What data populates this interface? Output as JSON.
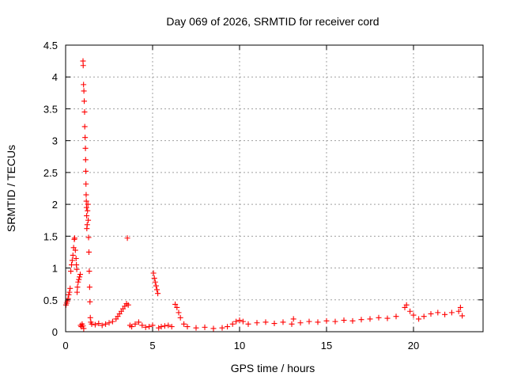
{
  "chart_data": {
    "type": "scatter",
    "title": "Day 069 of 2026, SRMTID for receiver cord",
    "xlabel": "GPS time / hours",
    "ylabel": "SRMTID / TECUs",
    "xlim": [
      0,
      24
    ],
    "ylim": [
      0,
      4.5
    ],
    "x_ticks": [
      0,
      5,
      10,
      15,
      20
    ],
    "x_tick_labels": [
      "0",
      "5",
      "10",
      "15",
      "20"
    ],
    "y_ticks": [
      0,
      0.5,
      1,
      1.5,
      2,
      2.5,
      3,
      3.5,
      4,
      4.5
    ],
    "y_tick_labels": [
      "0",
      "0.5",
      "1",
      "1.5",
      "2",
      "2.5",
      "3",
      "3.5",
      "4",
      "4.5"
    ],
    "grid": true,
    "marker": "+",
    "color": "#ff0000",
    "series": [
      {
        "name": "SRMTID",
        "points": [
          [
            0.02,
            0.42
          ],
          [
            0.06,
            0.45
          ],
          [
            0.1,
            0.48
          ],
          [
            0.14,
            0.52
          ],
          [
            0.18,
            0.58
          ],
          [
            0.22,
            0.62
          ],
          [
            0.26,
            0.68
          ],
          [
            0.3,
            0.95
          ],
          [
            0.34,
            1.05
          ],
          [
            0.38,
            1.12
          ],
          [
            0.42,
            1.2
          ],
          [
            0.46,
            1.32
          ],
          [
            0.5,
            1.45
          ],
          [
            0.52,
            1.47
          ],
          [
            0.56,
            1.28
          ],
          [
            0.6,
            1.15
          ],
          [
            0.62,
            1.05
          ],
          [
            0.64,
            0.98
          ],
          [
            0.66,
            0.62
          ],
          [
            0.68,
            0.7
          ],
          [
            0.72,
            0.78
          ],
          [
            0.76,
            0.82
          ],
          [
            0.8,
            0.86
          ],
          [
            0.84,
            0.9
          ],
          [
            0.86,
            0.1
          ],
          [
            0.9,
            0.08
          ],
          [
            0.95,
            0.12
          ],
          [
            1.0,
            0.09
          ],
          [
            1.04,
            0.05
          ],
          [
            1.0,
            4.25
          ],
          [
            1.01,
            4.18
          ],
          [
            1.03,
            3.88
          ],
          [
            1.05,
            3.78
          ],
          [
            1.07,
            3.62
          ],
          [
            1.09,
            3.45
          ],
          [
            1.1,
            3.22
          ],
          [
            1.12,
            3.05
          ],
          [
            1.14,
            2.88
          ],
          [
            1.15,
            2.7
          ],
          [
            1.16,
            2.52
          ],
          [
            1.17,
            2.32
          ],
          [
            1.18,
            2.15
          ],
          [
            1.19,
            2.05
          ],
          [
            1.2,
            1.95
          ],
          [
            1.21,
            1.82
          ],
          [
            1.22,
            1.62
          ],
          [
            1.24,
            1.68
          ],
          [
            1.26,
            1.9
          ],
          [
            1.28,
            2.0
          ],
          [
            1.3,
            1.75
          ],
          [
            1.32,
            1.48
          ],
          [
            1.34,
            1.25
          ],
          [
            1.36,
            0.95
          ],
          [
            1.38,
            0.7
          ],
          [
            1.4,
            0.47
          ],
          [
            1.42,
            0.22
          ],
          [
            1.45,
            0.15
          ],
          [
            1.5,
            0.12
          ],
          [
            1.7,
            0.11
          ],
          [
            1.9,
            0.13
          ],
          [
            2.1,
            0.1
          ],
          [
            2.3,
            0.12
          ],
          [
            2.5,
            0.14
          ],
          [
            2.7,
            0.16
          ],
          [
            2.9,
            0.2
          ],
          [
            3.0,
            0.24
          ],
          [
            3.1,
            0.28
          ],
          [
            3.2,
            0.32
          ],
          [
            3.3,
            0.36
          ],
          [
            3.4,
            0.4
          ],
          [
            3.5,
            0.44
          ],
          [
            3.55,
            1.47
          ],
          [
            3.6,
            0.42
          ],
          [
            3.7,
            0.1
          ],
          [
            3.8,
            0.08
          ],
          [
            4.0,
            0.12
          ],
          [
            4.2,
            0.15
          ],
          [
            4.4,
            0.1
          ],
          [
            4.6,
            0.07
          ],
          [
            4.8,
            0.08
          ],
          [
            5.0,
            0.1
          ],
          [
            5.05,
            0.92
          ],
          [
            5.1,
            0.84
          ],
          [
            5.15,
            0.78
          ],
          [
            5.2,
            0.72
          ],
          [
            5.25,
            0.66
          ],
          [
            5.3,
            0.6
          ],
          [
            5.35,
            0.06
          ],
          [
            5.5,
            0.08
          ],
          [
            5.7,
            0.09
          ],
          [
            5.9,
            0.1
          ],
          [
            6.1,
            0.08
          ],
          [
            6.3,
            0.43
          ],
          [
            6.4,
            0.38
          ],
          [
            6.5,
            0.3
          ],
          [
            6.6,
            0.22
          ],
          [
            6.8,
            0.12
          ],
          [
            7.0,
            0.08
          ],
          [
            7.5,
            0.06
          ],
          [
            8.0,
            0.07
          ],
          [
            8.5,
            0.05
          ],
          [
            9.0,
            0.06
          ],
          [
            9.3,
            0.08
          ],
          [
            9.6,
            0.12
          ],
          [
            9.8,
            0.16
          ],
          [
            10.0,
            0.18
          ],
          [
            10.2,
            0.16
          ],
          [
            10.5,
            0.12
          ],
          [
            11.0,
            0.14
          ],
          [
            11.5,
            0.15
          ],
          [
            12.0,
            0.13
          ],
          [
            12.5,
            0.15
          ],
          [
            13.0,
            0.12
          ],
          [
            13.1,
            0.2
          ],
          [
            13.5,
            0.14
          ],
          [
            14.0,
            0.16
          ],
          [
            14.5,
            0.15
          ],
          [
            15.0,
            0.17
          ],
          [
            15.5,
            0.16
          ],
          [
            16.0,
            0.18
          ],
          [
            16.5,
            0.17
          ],
          [
            17.0,
            0.19
          ],
          [
            17.5,
            0.2
          ],
          [
            18.0,
            0.22
          ],
          [
            18.5,
            0.21
          ],
          [
            19.0,
            0.24
          ],
          [
            19.5,
            0.38
          ],
          [
            19.6,
            0.42
          ],
          [
            19.8,
            0.32
          ],
          [
            20.0,
            0.26
          ],
          [
            20.3,
            0.2
          ],
          [
            20.6,
            0.24
          ],
          [
            21.0,
            0.28
          ],
          [
            21.4,
            0.3
          ],
          [
            21.8,
            0.27
          ],
          [
            22.2,
            0.3
          ],
          [
            22.6,
            0.32
          ],
          [
            22.7,
            0.38
          ],
          [
            22.8,
            0.25
          ]
        ]
      }
    ]
  }
}
